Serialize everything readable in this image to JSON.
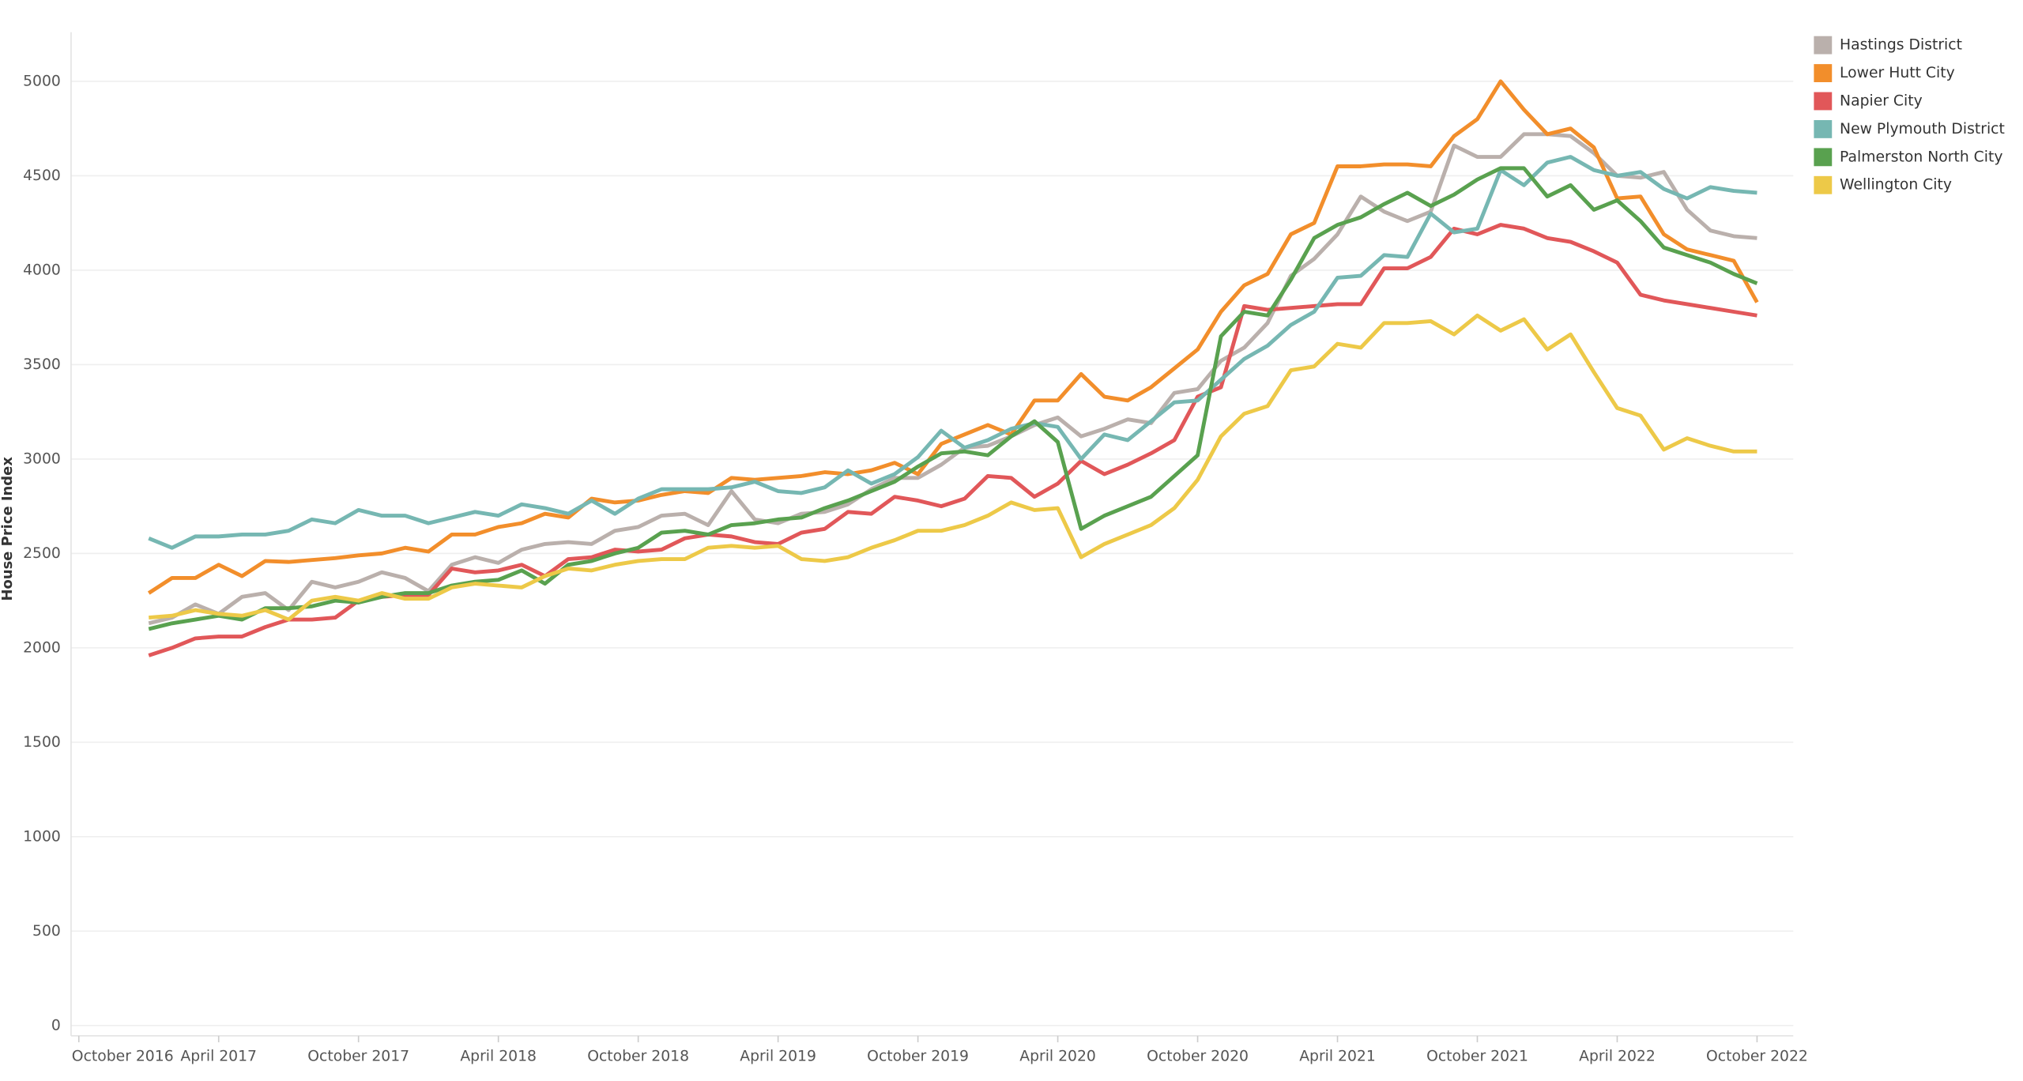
{
  "chart_data": {
    "type": "line",
    "y_label": "House Price Index",
    "x": [
      "2017-01",
      "2017-02",
      "2017-03",
      "2017-04",
      "2017-05",
      "2017-06",
      "2017-07",
      "2017-08",
      "2017-09",
      "2017-10",
      "2017-11",
      "2017-12",
      "2018-01",
      "2018-02",
      "2018-03",
      "2018-04",
      "2018-05",
      "2018-06",
      "2018-07",
      "2018-08",
      "2018-09",
      "2018-10",
      "2018-11",
      "2018-12",
      "2019-01",
      "2019-02",
      "2019-03",
      "2019-04",
      "2019-05",
      "2019-06",
      "2019-07",
      "2019-08",
      "2019-09",
      "2019-10",
      "2019-11",
      "2019-12",
      "2020-01",
      "2020-02",
      "2020-03",
      "2020-04",
      "2020-05",
      "2020-06",
      "2020-07",
      "2020-08",
      "2020-09",
      "2020-10",
      "2020-11",
      "2020-12",
      "2021-01",
      "2021-02",
      "2021-03",
      "2021-04",
      "2021-05",
      "2021-06",
      "2021-07",
      "2021-08",
      "2021-09",
      "2021-10",
      "2021-11",
      "2021-12",
      "2022-01",
      "2022-02",
      "2022-03",
      "2022-04",
      "2022-05",
      "2022-06",
      "2022-07",
      "2022-08",
      "2022-09",
      "2022-10"
    ],
    "series": [
      {
        "name": "Hastings District",
        "color": "#bab0ac",
        "values": [
          2130,
          2160,
          2230,
          2180,
          2270,
          2290,
          2200,
          2350,
          2320,
          2350,
          2400,
          2370,
          2300,
          2440,
          2480,
          2450,
          2520,
          2550,
          2560,
          2550,
          2620,
          2640,
          2700,
          2710,
          2650,
          2830,
          2680,
          2660,
          2710,
          2720,
          2760,
          2840,
          2900,
          2900,
          2970,
          3060,
          3070,
          3120,
          3180,
          3220,
          3120,
          3160,
          3210,
          3190,
          3350,
          3370,
          3520,
          3590,
          3720,
          3970,
          4060,
          4190,
          4390,
          4310,
          4260,
          4310,
          4660,
          4600,
          4600,
          4720,
          4720,
          4710,
          4620,
          4500,
          4490,
          4520,
          4320,
          4210,
          4180,
          4170
        ]
      },
      {
        "name": "Lower Hutt City",
        "color": "#f28e2b",
        "values": [
          2290,
          2370,
          2370,
          2440,
          2380,
          2460,
          2455,
          2465,
          2475,
          2490,
          2500,
          2530,
          2510,
          2600,
          2600,
          2640,
          2660,
          2710,
          2690,
          2790,
          2770,
          2780,
          2810,
          2830,
          2820,
          2900,
          2890,
          2900,
          2910,
          2930,
          2920,
          2940,
          2980,
          2920,
          3080,
          3130,
          3180,
          3130,
          3310,
          3310,
          3450,
          3330,
          3310,
          3380,
          3480,
          3580,
          3780,
          3920,
          3980,
          4190,
          4250,
          4550,
          4550,
          4560,
          4560,
          4550,
          4710,
          4800,
          5000,
          4850,
          4720,
          4750,
          4650,
          4380,
          4390,
          4190,
          4110,
          4080,
          4050,
          3830
        ]
      },
      {
        "name": "Napier City",
        "color": "#e15759",
        "values": [
          1960,
          2000,
          2050,
          2060,
          2060,
          2110,
          2150,
          2150,
          2160,
          2250,
          2270,
          2280,
          2280,
          2420,
          2400,
          2410,
          2440,
          2380,
          2470,
          2480,
          2520,
          2510,
          2520,
          2580,
          2600,
          2590,
          2560,
          2550,
          2610,
          2630,
          2720,
          2710,
          2800,
          2780,
          2750,
          2790,
          2910,
          2900,
          2800,
          2870,
          2990,
          2920,
          2970,
          3030,
          3100,
          3330,
          3380,
          3810,
          3790,
          3800,
          3810,
          3820,
          3820,
          4010,
          4010,
          4070,
          4220,
          4190,
          4240,
          4220,
          4170,
          4150,
          4100,
          4040,
          3870,
          3840,
          3820,
          3800,
          3780,
          3760
        ]
      },
      {
        "name": "New Plymouth District",
        "color": "#76b7b2",
        "values": [
          2580,
          2530,
          2590,
          2590,
          2600,
          2600,
          2620,
          2680,
          2660,
          2730,
          2700,
          2700,
          2660,
          2690,
          2720,
          2700,
          2760,
          2740,
          2710,
          2780,
          2710,
          2790,
          2840,
          2840,
          2840,
          2850,
          2880,
          2830,
          2820,
          2850,
          2940,
          2870,
          2920,
          3010,
          3150,
          3060,
          3100,
          3160,
          3190,
          3170,
          3000,
          3130,
          3100,
          3200,
          3300,
          3310,
          3420,
          3530,
          3600,
          3710,
          3780,
          3960,
          3970,
          4080,
          4070,
          4300,
          4200,
          4220,
          4530,
          4450,
          4570,
          4600,
          4530,
          4500,
          4520,
          4430,
          4380,
          4440,
          4420,
          4410
        ]
      },
      {
        "name": "Palmerston North City",
        "color": "#59a14f",
        "values": [
          2100,
          2130,
          2150,
          2170,
          2150,
          2210,
          2210,
          2220,
          2250,
          2240,
          2270,
          2290,
          2290,
          2330,
          2350,
          2360,
          2410,
          2340,
          2440,
          2460,
          2500,
          2530,
          2610,
          2620,
          2600,
          2650,
          2660,
          2680,
          2690,
          2740,
          2780,
          2830,
          2880,
          2960,
          3030,
          3040,
          3020,
          3120,
          3200,
          3090,
          2630,
          2700,
          2750,
          2800,
          2910,
          3020,
          3650,
          3780,
          3760,
          3950,
          4170,
          4240,
          4280,
          4350,
          4410,
          4340,
          4400,
          4480,
          4540,
          4540,
          4390,
          4450,
          4320,
          4370,
          4260,
          4120,
          4080,
          4040,
          3980,
          3930
        ]
      },
      {
        "name": "Wellington City",
        "color": "#edc948",
        "values": [
          2160,
          2170,
          2200,
          2180,
          2170,
          2200,
          2150,
          2250,
          2270,
          2250,
          2290,
          2260,
          2260,
          2320,
          2340,
          2330,
          2320,
          2380,
          2420,
          2410,
          2440,
          2460,
          2470,
          2470,
          2530,
          2540,
          2530,
          2540,
          2470,
          2460,
          2480,
          2530,
          2570,
          2620,
          2620,
          2650,
          2700,
          2770,
          2730,
          2740,
          2480,
          2550,
          2600,
          2650,
          2740,
          2890,
          3120,
          3240,
          3280,
          3470,
          3490,
          3610,
          3590,
          3720,
          3720,
          3730,
          3660,
          3760,
          3680,
          3740,
          3580,
          3660,
          3460,
          3270,
          3230,
          3050,
          3110,
          3070,
          3040,
          3040
        ]
      }
    ],
    "xlim": [
      "2016-10",
      "2022-11"
    ],
    "xticks": [
      {
        "value": "2016-10",
        "label": "October 2016"
      },
      {
        "value": "2017-04",
        "label": "April 2017"
      },
      {
        "value": "2017-10",
        "label": "October 2017"
      },
      {
        "value": "2018-04",
        "label": "April 2018"
      },
      {
        "value": "2018-10",
        "label": "October 2018"
      },
      {
        "value": "2019-04",
        "label": "April 2019"
      },
      {
        "value": "2019-10",
        "label": "October 2019"
      },
      {
        "value": "2020-04",
        "label": "April 2020"
      },
      {
        "value": "2020-10",
        "label": "October 2020"
      },
      {
        "value": "2021-04",
        "label": "April 2021"
      },
      {
        "value": "2021-10",
        "label": "October 2021"
      },
      {
        "value": "2022-04",
        "label": "April 2022"
      },
      {
        "value": "2022-10",
        "label": "October 2022"
      }
    ],
    "ylim": [
      0,
      5260
    ],
    "yticks": [
      0,
      500,
      1000,
      1500,
      2000,
      2500,
      3000,
      3500,
      4000,
      4500,
      5000
    ],
    "grid": true,
    "legend": "right"
  }
}
